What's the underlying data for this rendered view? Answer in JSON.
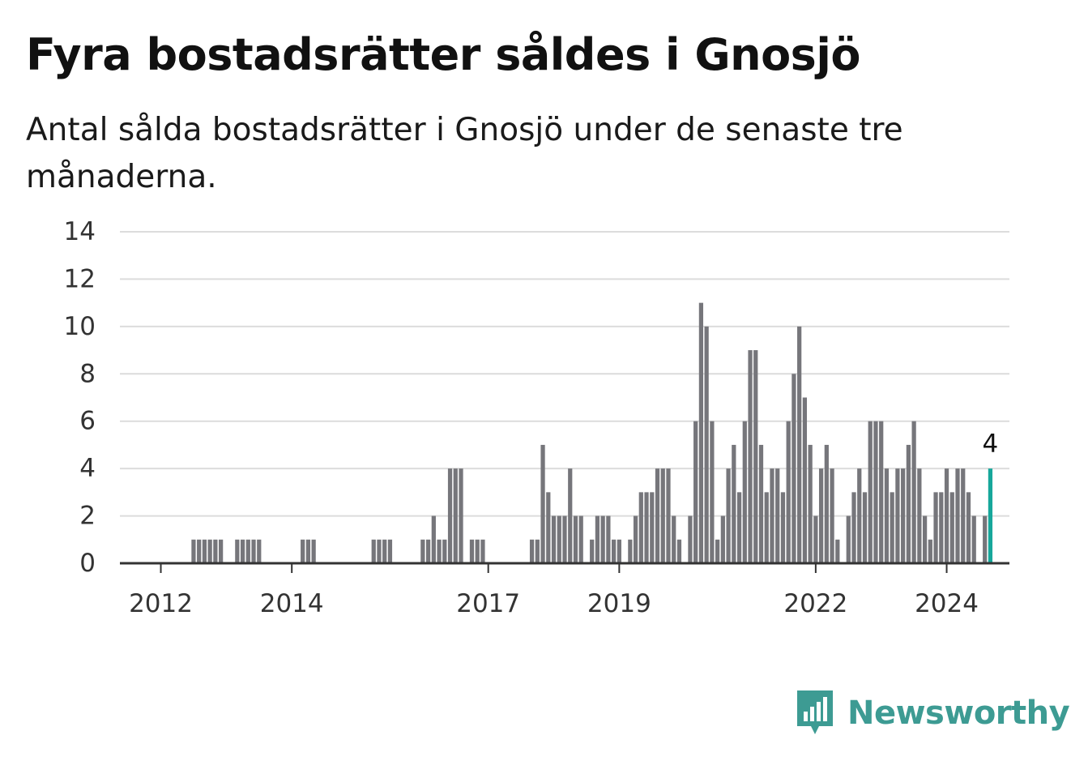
{
  "title": "Fyra bostadsrätter såldes i Gnosjö",
  "subtitle": "Antal sålda bostadsrätter i Gnosjö under de senaste tre månaderna.",
  "brand": {
    "name": "Newsworthy",
    "icon": "chart-bubble-icon",
    "color": "#3d9b93"
  },
  "colors": {
    "bar": "#76767b",
    "highlight": "#17a79b",
    "grid": "#dcdcdc",
    "axis": "#333333"
  },
  "chart_data": {
    "type": "bar",
    "title": "Fyra bostadsrätter såldes i Gnosjö",
    "subtitle": "Antal sålda bostadsrätter i Gnosjö under de senaste tre månaderna.",
    "xlabel": "",
    "ylabel": "",
    "x_start": "2011-06",
    "x_end": "2024-12",
    "xticks": [
      {
        "date": "2012-01",
        "label": "2012"
      },
      {
        "date": "2014-01",
        "label": "2014"
      },
      {
        "date": "2017-01",
        "label": "2017"
      },
      {
        "date": "2019-01",
        "label": "2019"
      },
      {
        "date": "2022-01",
        "label": "2022"
      },
      {
        "date": "2024-01",
        "label": "2024"
      }
    ],
    "ylim": [
      0,
      14
    ],
    "yticks": [
      0,
      2,
      4,
      6,
      8,
      10,
      12,
      14
    ],
    "grid": true,
    "legend": "none",
    "highlight": {
      "date": "2024-09",
      "value": 4,
      "label": "4"
    },
    "series": [
      {
        "points": [
          {
            "date": "2012-07",
            "value": 1
          },
          {
            "date": "2012-08",
            "value": 1
          },
          {
            "date": "2012-09",
            "value": 1
          },
          {
            "date": "2012-10",
            "value": 1
          },
          {
            "date": "2012-11",
            "value": 1
          },
          {
            "date": "2012-12",
            "value": 1
          },
          {
            "date": "2013-03",
            "value": 1
          },
          {
            "date": "2013-04",
            "value": 1
          },
          {
            "date": "2013-05",
            "value": 1
          },
          {
            "date": "2013-06",
            "value": 1
          },
          {
            "date": "2013-07",
            "value": 1
          },
          {
            "date": "2014-03",
            "value": 1
          },
          {
            "date": "2014-04",
            "value": 1
          },
          {
            "date": "2014-05",
            "value": 1
          },
          {
            "date": "2015-04",
            "value": 1
          },
          {
            "date": "2015-05",
            "value": 1
          },
          {
            "date": "2015-06",
            "value": 1
          },
          {
            "date": "2015-07",
            "value": 1
          },
          {
            "date": "2016-01",
            "value": 1
          },
          {
            "date": "2016-02",
            "value": 1
          },
          {
            "date": "2016-03",
            "value": 2
          },
          {
            "date": "2016-04",
            "value": 1
          },
          {
            "date": "2016-05",
            "value": 1
          },
          {
            "date": "2016-06",
            "value": 4
          },
          {
            "date": "2016-07",
            "value": 4
          },
          {
            "date": "2016-08",
            "value": 4
          },
          {
            "date": "2016-10",
            "value": 1
          },
          {
            "date": "2016-11",
            "value": 1
          },
          {
            "date": "2016-12",
            "value": 1
          },
          {
            "date": "2017-09",
            "value": 1
          },
          {
            "date": "2017-10",
            "value": 1
          },
          {
            "date": "2017-11",
            "value": 5
          },
          {
            "date": "2017-12",
            "value": 3
          },
          {
            "date": "2018-01",
            "value": 2
          },
          {
            "date": "2018-02",
            "value": 2
          },
          {
            "date": "2018-03",
            "value": 2
          },
          {
            "date": "2018-04",
            "value": 4
          },
          {
            "date": "2018-05",
            "value": 2
          },
          {
            "date": "2018-06",
            "value": 2
          },
          {
            "date": "2018-08",
            "value": 1
          },
          {
            "date": "2018-09",
            "value": 2
          },
          {
            "date": "2018-10",
            "value": 2
          },
          {
            "date": "2018-11",
            "value": 2
          },
          {
            "date": "2018-12",
            "value": 1
          },
          {
            "date": "2019-01",
            "value": 1
          },
          {
            "date": "2019-03",
            "value": 1
          },
          {
            "date": "2019-04",
            "value": 2
          },
          {
            "date": "2019-05",
            "value": 3
          },
          {
            "date": "2019-06",
            "value": 3
          },
          {
            "date": "2019-07",
            "value": 3
          },
          {
            "date": "2019-08",
            "value": 4
          },
          {
            "date": "2019-09",
            "value": 4
          },
          {
            "date": "2019-10",
            "value": 4
          },
          {
            "date": "2019-11",
            "value": 2
          },
          {
            "date": "2019-12",
            "value": 1
          },
          {
            "date": "2020-02",
            "value": 2
          },
          {
            "date": "2020-03",
            "value": 6
          },
          {
            "date": "2020-04",
            "value": 11
          },
          {
            "date": "2020-05",
            "value": 10
          },
          {
            "date": "2020-06",
            "value": 6
          },
          {
            "date": "2020-07",
            "value": 1
          },
          {
            "date": "2020-08",
            "value": 2
          },
          {
            "date": "2020-09",
            "value": 4
          },
          {
            "date": "2020-10",
            "value": 5
          },
          {
            "date": "2020-11",
            "value": 3
          },
          {
            "date": "2020-12",
            "value": 6
          },
          {
            "date": "2021-01",
            "value": 9
          },
          {
            "date": "2021-02",
            "value": 9
          },
          {
            "date": "2021-03",
            "value": 5
          },
          {
            "date": "2021-04",
            "value": 3
          },
          {
            "date": "2021-05",
            "value": 4
          },
          {
            "date": "2021-06",
            "value": 4
          },
          {
            "date": "2021-07",
            "value": 3
          },
          {
            "date": "2021-08",
            "value": 6
          },
          {
            "date": "2021-09",
            "value": 8
          },
          {
            "date": "2021-10",
            "value": 10
          },
          {
            "date": "2021-11",
            "value": 7
          },
          {
            "date": "2021-12",
            "value": 5
          },
          {
            "date": "2022-01",
            "value": 2
          },
          {
            "date": "2022-02",
            "value": 4
          },
          {
            "date": "2022-03",
            "value": 5
          },
          {
            "date": "2022-04",
            "value": 4
          },
          {
            "date": "2022-05",
            "value": 1
          },
          {
            "date": "2022-07",
            "value": 2
          },
          {
            "date": "2022-08",
            "value": 3
          },
          {
            "date": "2022-09",
            "value": 4
          },
          {
            "date": "2022-10",
            "value": 3
          },
          {
            "date": "2022-11",
            "value": 6
          },
          {
            "date": "2022-12",
            "value": 6
          },
          {
            "date": "2023-01",
            "value": 6
          },
          {
            "date": "2023-02",
            "value": 4
          },
          {
            "date": "2023-03",
            "value": 3
          },
          {
            "date": "2023-04",
            "value": 4
          },
          {
            "date": "2023-05",
            "value": 4
          },
          {
            "date": "2023-06",
            "value": 5
          },
          {
            "date": "2023-07",
            "value": 6
          },
          {
            "date": "2023-08",
            "value": 4
          },
          {
            "date": "2023-09",
            "value": 2
          },
          {
            "date": "2023-10",
            "value": 1
          },
          {
            "date": "2023-11",
            "value": 3
          },
          {
            "date": "2023-12",
            "value": 3
          },
          {
            "date": "2024-01",
            "value": 4
          },
          {
            "date": "2024-02",
            "value": 3
          },
          {
            "date": "2024-03",
            "value": 4
          },
          {
            "date": "2024-04",
            "value": 4
          },
          {
            "date": "2024-05",
            "value": 3
          },
          {
            "date": "2024-06",
            "value": 2
          },
          {
            "date": "2024-08",
            "value": 2
          },
          {
            "date": "2024-09",
            "value": 4
          }
        ]
      }
    ]
  }
}
